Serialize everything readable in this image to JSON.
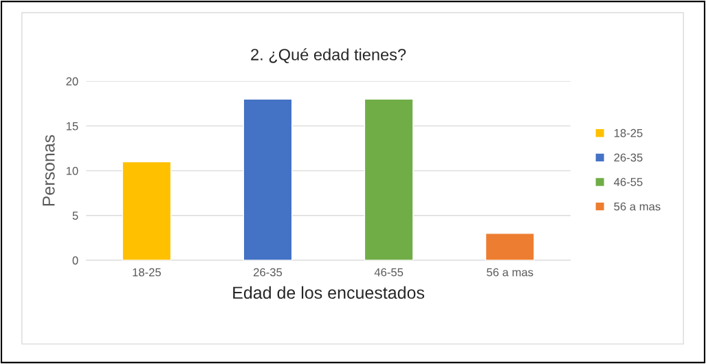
{
  "chart_data": {
    "type": "bar",
    "title": "2. ¿Qué edad tienes?",
    "xlabel": "Edad de los encuestados",
    "ylabel": "Personas",
    "categories": [
      "18-25",
      "26-35",
      "46-55",
      "56 a mas"
    ],
    "series": [
      {
        "name": "18-25",
        "color": "#ffc000",
        "values": [
          11,
          null,
          null,
          null
        ]
      },
      {
        "name": "26-35",
        "color": "#4472c4",
        "values": [
          null,
          18,
          null,
          null
        ]
      },
      {
        "name": "46-55",
        "color": "#70ad47",
        "values": [
          null,
          null,
          18,
          null
        ]
      },
      {
        "name": "56 a mas",
        "color": "#ed7d31",
        "values": [
          null,
          null,
          null,
          3
        ]
      }
    ],
    "ylim": [
      0,
      20
    ],
    "yticks": [
      0,
      5,
      10,
      15,
      20
    ],
    "grid": "y",
    "legend": "right"
  }
}
